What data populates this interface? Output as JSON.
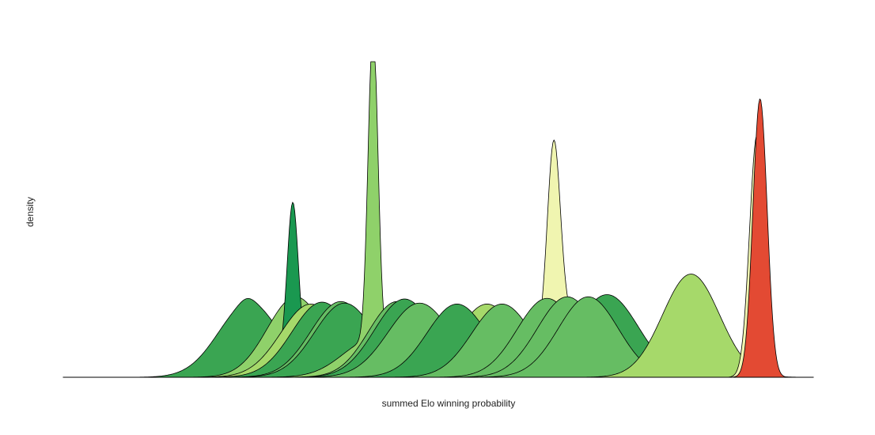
{
  "chart_data": {
    "type": "area",
    "title": "",
    "xlabel": "summed Elo winning probability",
    "ylabel": "density",
    "xlim": [
      0,
      1
    ],
    "ylim": [
      0,
      1
    ],
    "grid": false,
    "legend": "none",
    "axis_ticks": false,
    "series": [
      {
        "color": "#3aa552",
        "peaks": [
          {
            "mu": 0.248,
            "sigma": 0.041,
            "amp": 0.235
          },
          {
            "mu": 0.245,
            "sigma": 0.01,
            "amp": 0.015
          }
        ]
      },
      {
        "color": "#8fd16a",
        "peaks": [
          {
            "mu": 0.31,
            "sigma": 0.038,
            "amp": 0.255
          }
        ]
      },
      {
        "color": "#1a9850",
        "peaks": [
          {
            "mu": 0.306,
            "sigma": 0.0075,
            "amp": 0.495
          },
          {
            "mu": 0.306,
            "sigma": 0.03,
            "amp": 0.06
          }
        ]
      },
      {
        "color": "#a6d96a",
        "peaks": [
          {
            "mu": 0.33,
            "sigma": 0.04,
            "amp": 0.232
          }
        ]
      },
      {
        "color": "#3aa552",
        "peaks": [
          {
            "mu": 0.345,
            "sigma": 0.04,
            "amp": 0.238
          }
        ]
      },
      {
        "color": "#66bd63",
        "peaks": [
          {
            "mu": 0.37,
            "sigma": 0.04,
            "amp": 0.24
          }
        ]
      },
      {
        "color": "#3aa552",
        "peaks": [
          {
            "mu": 0.375,
            "sigma": 0.04,
            "amp": 0.235
          }
        ]
      },
      {
        "color": "#8fd16a",
        "peaks": [
          {
            "mu": 0.413,
            "sigma": 0.0065,
            "amp": 0.995
          },
          {
            "mu": 0.413,
            "sigma": 0.04,
            "amp": 0.12
          }
        ]
      },
      {
        "color": "#66bd63",
        "peaks": [
          {
            "mu": 0.445,
            "sigma": 0.038,
            "amp": 0.24
          }
        ]
      },
      {
        "color": "#3aa552",
        "peaks": [
          {
            "mu": 0.455,
            "sigma": 0.04,
            "amp": 0.248
          }
        ]
      },
      {
        "color": "#66bd63",
        "peaks": [
          {
            "mu": 0.475,
            "sigma": 0.042,
            "amp": 0.235
          }
        ]
      },
      {
        "color": "#a6d96a",
        "peaks": [
          {
            "mu": 0.565,
            "sigma": 0.04,
            "amp": 0.232
          }
        ]
      },
      {
        "color": "#3aa552",
        "peaks": [
          {
            "mu": 0.525,
            "sigma": 0.04,
            "amp": 0.232
          }
        ]
      },
      {
        "color": "#66bd63",
        "peaks": [
          {
            "mu": 0.585,
            "sigma": 0.04,
            "amp": 0.232
          }
        ]
      },
      {
        "color": "#f0f5b0",
        "peaks": [
          {
            "mu": 0.654,
            "sigma": 0.0085,
            "amp": 0.56
          },
          {
            "mu": 0.665,
            "sigma": 0.03,
            "amp": 0.205
          }
        ]
      },
      {
        "color": "#66bd63",
        "peaks": [
          {
            "mu": 0.645,
            "sigma": 0.04,
            "amp": 0.25
          }
        ]
      },
      {
        "color": "#66bd63",
        "peaks": [
          {
            "mu": 0.672,
            "sigma": 0.04,
            "amp": 0.255
          }
        ]
      },
      {
        "color": "#3aa552",
        "peaks": [
          {
            "mu": 0.725,
            "sigma": 0.042,
            "amp": 0.262
          }
        ]
      },
      {
        "color": "#66bd63",
        "peaks": [
          {
            "mu": 0.7,
            "sigma": 0.04,
            "amp": 0.255
          }
        ]
      },
      {
        "color": "#a6d96a",
        "peaks": [
          {
            "mu": 0.837,
            "sigma": 0.038,
            "amp": 0.327
          }
        ]
      },
      {
        "color": "#f0f5b0",
        "peaks": [
          {
            "mu": 0.925,
            "sigma": 0.01,
            "amp": 0.768
          }
        ]
      },
      {
        "color": "#e34a33",
        "peaks": [
          {
            "mu": 0.929,
            "sigma": 0.0095,
            "amp": 0.883
          }
        ]
      }
    ]
  }
}
